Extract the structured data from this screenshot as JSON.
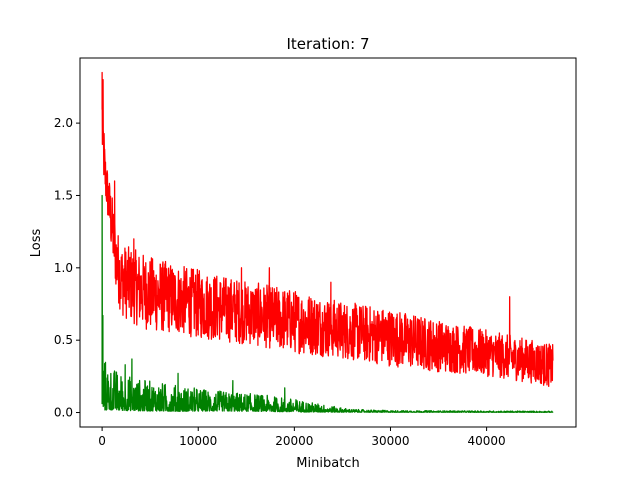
{
  "chart_data": {
    "type": "line",
    "title": "Iteration: 7",
    "xlabel": "Minibatch",
    "ylabel": "Loss",
    "xlim": [
      -2300,
      49300
    ],
    "ylim": [
      -0.1,
      2.45
    ],
    "xticks": [
      0,
      10000,
      20000,
      30000,
      40000
    ],
    "xtick_labels": [
      "0",
      "10000",
      "20000",
      "30000",
      "40000"
    ],
    "yticks": [
      0.0,
      0.5,
      1.0,
      1.5,
      2.0
    ],
    "ytick_labels": [
      "0.0",
      "0.5",
      "1.0",
      "1.5",
      "2.0"
    ],
    "grid": false,
    "legend": "none",
    "series": [
      {
        "color": "#ff0000",
        "x_max": 46900,
        "envelope": {
          "x": [
            0,
            300,
            600,
            1000,
            1500,
            2000,
            3000,
            5000,
            8000,
            10000,
            15000,
            20000,
            25000,
            30000,
            35000,
            40000,
            45000,
            46900
          ],
          "center": [
            2.0,
            1.65,
            1.5,
            1.3,
            1.05,
            0.92,
            0.88,
            0.82,
            0.78,
            0.75,
            0.69,
            0.63,
            0.57,
            0.52,
            0.46,
            0.41,
            0.35,
            0.32
          ],
          "spread": [
            0.3,
            0.18,
            0.18,
            0.22,
            0.24,
            0.25,
            0.26,
            0.26,
            0.24,
            0.24,
            0.22,
            0.22,
            0.2,
            0.2,
            0.18,
            0.16,
            0.15,
            0.15
          ]
        },
        "spikes": [
          {
            "x": 0,
            "y": 2.35
          },
          {
            "x": 100,
            "y": 2.3
          },
          {
            "x": 1300,
            "y": 1.6
          },
          {
            "x": 3300,
            "y": 1.2
          },
          {
            "x": 14500,
            "y": 1.0
          },
          {
            "x": 17400,
            "y": 1.0
          },
          {
            "x": 23800,
            "y": 0.9
          },
          {
            "x": 42400,
            "y": 0.8
          }
        ]
      },
      {
        "color": "#008000",
        "x_max": 46900,
        "envelope": {
          "x": [
            0,
            300,
            1000,
            2000,
            4000,
            8000,
            12000,
            16000,
            20000,
            24000,
            26000,
            30000,
            46900
          ],
          "center": [
            0.1,
            0.08,
            0.07,
            0.06,
            0.05,
            0.04,
            0.035,
            0.03,
            0.02,
            0.01,
            0.006,
            0.004,
            0.003
          ],
          "spread": [
            0.22,
            0.18,
            0.15,
            0.13,
            0.11,
            0.09,
            0.07,
            0.06,
            0.045,
            0.02,
            0.01,
            0.006,
            0.004
          ]
        },
        "spikes": [
          {
            "x": 0,
            "y": 1.5
          },
          {
            "x": 80,
            "y": 0.67
          },
          {
            "x": 3100,
            "y": 0.37
          },
          {
            "x": 2400,
            "y": 0.33
          },
          {
            "x": 7900,
            "y": 0.27
          },
          {
            "x": 13600,
            "y": 0.22
          },
          {
            "x": 19000,
            "y": 0.17
          }
        ]
      }
    ]
  }
}
